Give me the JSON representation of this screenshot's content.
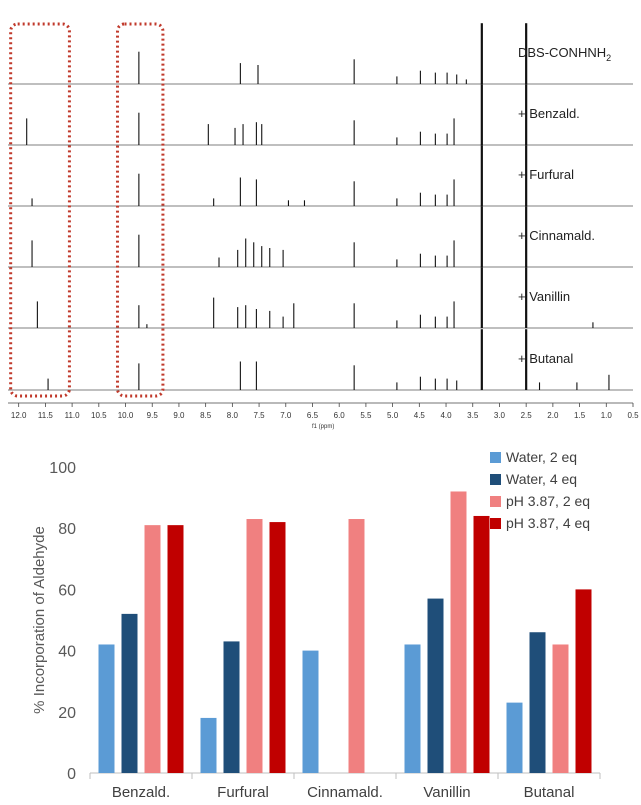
{
  "chart_data": [
    {
      "type": "line",
      "title": "",
      "xlabel": "f1 (ppm)",
      "x_ticks": [
        "12.0",
        "11.5",
        "11.0",
        "10.5",
        "10.0",
        "9.5",
        "9.0",
        "8.5",
        "8.0",
        "7.5",
        "7.0",
        "6.5",
        "6.0",
        "5.5",
        "5.0",
        "4.5",
        "4.0",
        "3.5",
        "3.0",
        "2.5",
        "2.0",
        "1.5",
        "1.0",
        "0.5"
      ],
      "xlim": [
        12.2,
        0.5
      ],
      "highlighted_regions_ppm": [
        [
          11.05,
          12.15
        ],
        [
          9.3,
          10.15
        ]
      ],
      "highlight_color": "#c0392b",
      "series": [
        {
          "name": "DBS-CONHNH",
          "subscript": "2",
          "peaks": [
            [
              9.75,
              0.85
            ],
            [
              7.85,
              0.55
            ],
            [
              7.52,
              0.5
            ],
            [
              5.72,
              0.65
            ],
            [
              4.92,
              0.2
            ],
            [
              4.48,
              0.35
            ],
            [
              4.2,
              0.3
            ],
            [
              3.98,
              0.3
            ],
            [
              3.8,
              0.25
            ],
            [
              3.62,
              0.12
            ],
            [
              3.33,
              1.6
            ],
            [
              2.5,
              1.6
            ]
          ]
        },
        {
          "name": "+ Benzald.",
          "peaks": [
            [
              11.85,
              0.7
            ],
            [
              9.75,
              0.85
            ],
            [
              8.45,
              0.55
            ],
            [
              7.95,
              0.45
            ],
            [
              7.8,
              0.55
            ],
            [
              7.55,
              0.6
            ],
            [
              7.45,
              0.55
            ],
            [
              5.72,
              0.65
            ],
            [
              4.92,
              0.2
            ],
            [
              4.48,
              0.35
            ],
            [
              4.2,
              0.3
            ],
            [
              3.98,
              0.3
            ],
            [
              3.85,
              0.7
            ],
            [
              3.33,
              1.6
            ],
            [
              2.5,
              1.6
            ]
          ]
        },
        {
          "name": "+ Furfural",
          "peaks": [
            [
              11.75,
              0.2
            ],
            [
              9.75,
              0.85
            ],
            [
              8.35,
              0.2
            ],
            [
              7.85,
              0.75
            ],
            [
              7.55,
              0.7
            ],
            [
              6.95,
              0.15
            ],
            [
              6.65,
              0.15
            ],
            [
              5.72,
              0.65
            ],
            [
              4.92,
              0.2
            ],
            [
              4.48,
              0.35
            ],
            [
              4.2,
              0.3
            ],
            [
              3.98,
              0.3
            ],
            [
              3.85,
              0.7
            ],
            [
              3.33,
              1.6
            ],
            [
              2.5,
              1.6
            ]
          ]
        },
        {
          "name": "+ Cinnamald.",
          "peaks": [
            [
              11.75,
              0.7
            ],
            [
              9.75,
              0.85
            ],
            [
              8.25,
              0.25
            ],
            [
              7.9,
              0.45
            ],
            [
              7.75,
              0.75
            ],
            [
              7.6,
              0.65
            ],
            [
              7.45,
              0.55
            ],
            [
              7.3,
              0.5
            ],
            [
              7.05,
              0.45
            ],
            [
              5.72,
              0.65
            ],
            [
              4.92,
              0.2
            ],
            [
              4.48,
              0.35
            ],
            [
              4.2,
              0.3
            ],
            [
              3.98,
              0.3
            ],
            [
              3.85,
              0.7
            ],
            [
              3.33,
              1.6
            ],
            [
              2.5,
              1.6
            ]
          ]
        },
        {
          "name": "+ Vanillin",
          "peaks": [
            [
              11.65,
              0.7
            ],
            [
              9.75,
              0.6
            ],
            [
              9.6,
              0.1
            ],
            [
              8.35,
              0.8
            ],
            [
              7.9,
              0.55
            ],
            [
              7.75,
              0.6
            ],
            [
              7.55,
              0.5
            ],
            [
              7.3,
              0.45
            ],
            [
              7.05,
              0.3
            ],
            [
              6.85,
              0.65
            ],
            [
              5.72,
              0.65
            ],
            [
              4.92,
              0.2
            ],
            [
              4.48,
              0.35
            ],
            [
              4.2,
              0.3
            ],
            [
              3.98,
              0.3
            ],
            [
              3.85,
              0.7
            ],
            [
              3.33,
              1.6
            ],
            [
              2.5,
              1.6
            ],
            [
              1.25,
              0.15
            ]
          ]
        },
        {
          "name": "+ Butanal",
          "peaks": [
            [
              11.45,
              0.3
            ],
            [
              9.75,
              0.7
            ],
            [
              7.85,
              0.75
            ],
            [
              7.55,
              0.75
            ],
            [
              5.72,
              0.65
            ],
            [
              4.92,
              0.2
            ],
            [
              4.48,
              0.35
            ],
            [
              4.2,
              0.3
            ],
            [
              3.98,
              0.3
            ],
            [
              3.8,
              0.25
            ],
            [
              3.33,
              1.6
            ],
            [
              2.5,
              1.6
            ],
            [
              2.25,
              0.2
            ],
            [
              1.55,
              0.2
            ],
            [
              0.95,
              0.4
            ]
          ]
        }
      ]
    },
    {
      "type": "bar",
      "title": "",
      "ylabel": "% Incorporation of Aldehyde",
      "ylim": [
        0,
        100
      ],
      "yticks": [
        0,
        20,
        40,
        60,
        80,
        100
      ],
      "grid": false,
      "legend": "top-right",
      "categories": [
        "Benzald.",
        "Furfural",
        "Cinnamald.",
        "Vanillin",
        "Butanal"
      ],
      "series": [
        {
          "name": "Water, 2 eq",
          "color": "#5b9bd5",
          "values": [
            42,
            18,
            40,
            42,
            23
          ]
        },
        {
          "name": "Water, 4 eq",
          "color": "#1f4e79",
          "values": [
            52,
            43,
            null,
            57,
            46
          ]
        },
        {
          "name": "pH 3.87, 2 eq",
          "color": "#f08080",
          "values": [
            81,
            83,
            83,
            92,
            42
          ]
        },
        {
          "name": "pH 3.87, 4 eq",
          "color": "#c00000",
          "values": [
            81,
            82,
            null,
            84,
            60
          ]
        }
      ]
    }
  ]
}
